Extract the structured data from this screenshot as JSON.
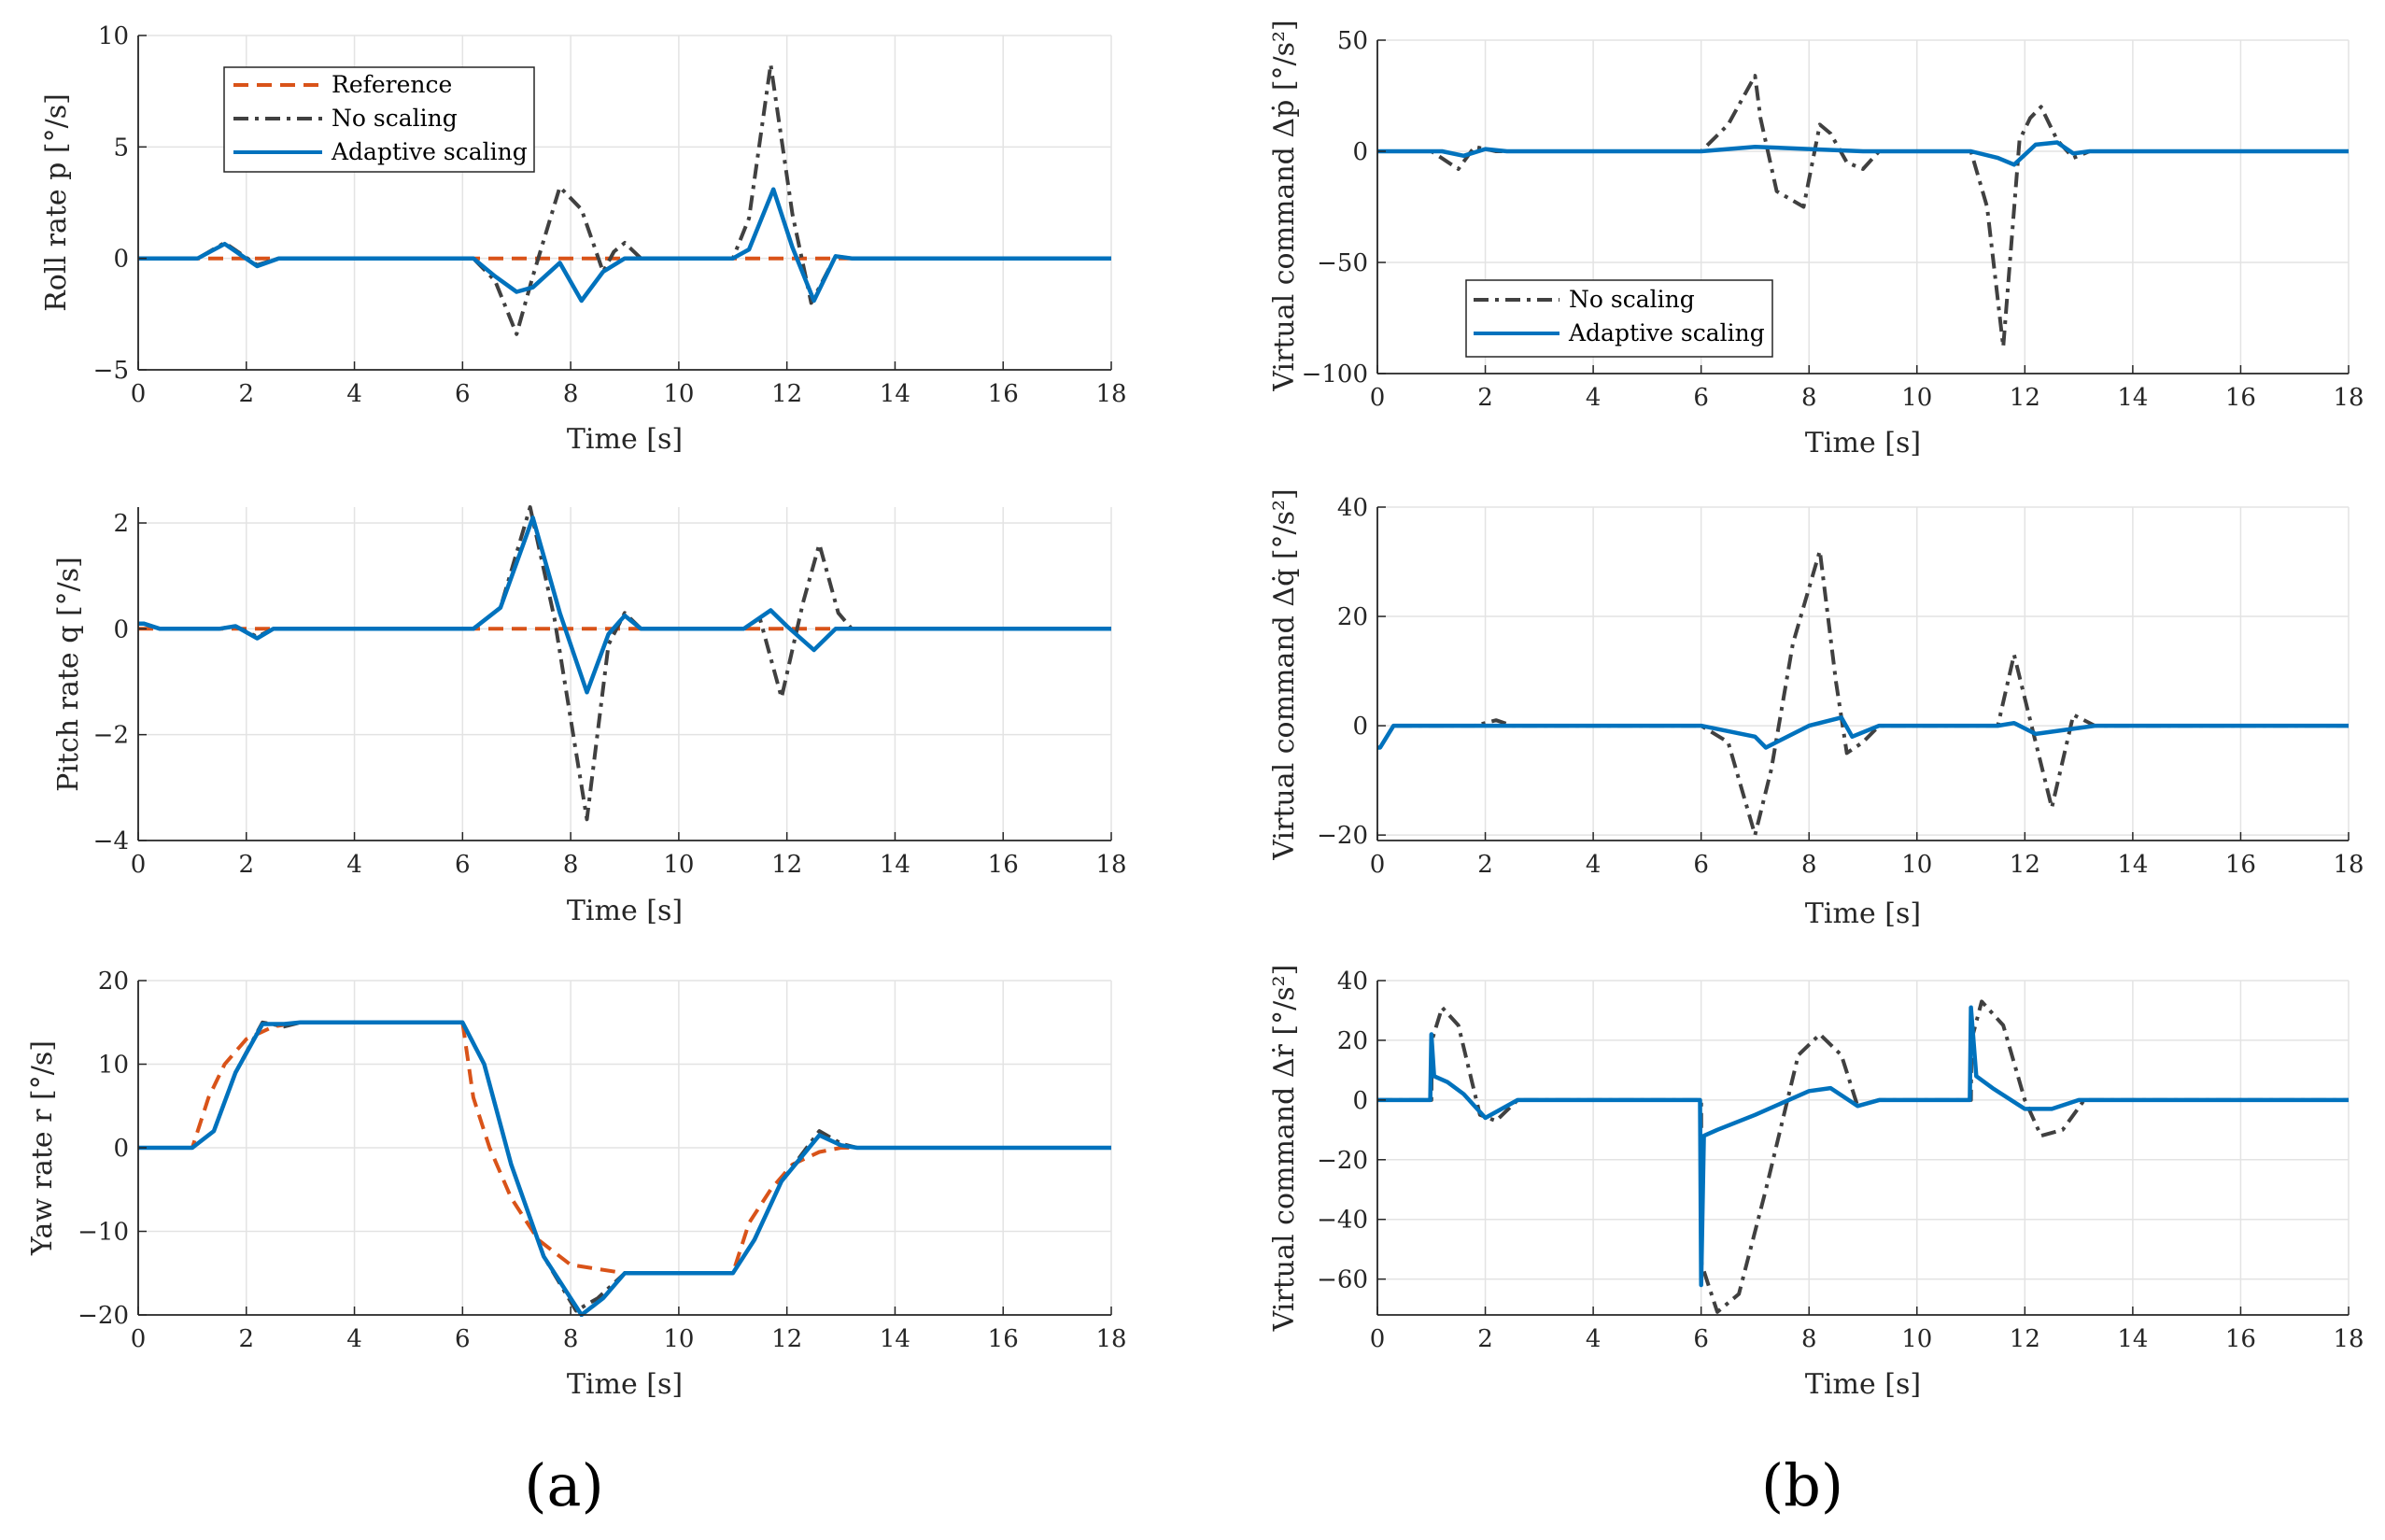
{
  "colors": {
    "reference": "#D95319",
    "no_scaling": "#404040",
    "adaptive": "#0072BD",
    "grid": "#e3e3e3",
    "axis": "#262626"
  },
  "panel_labels": [
    "(a)",
    "(b)"
  ],
  "chart_data": [
    {
      "id": "roll-rate",
      "type": "line",
      "xlabel": "Time [s]",
      "ylabel": "Roll rate p [°/s]",
      "xlim": [
        0,
        18
      ],
      "ylim": [
        -5,
        10
      ],
      "xticks": [
        0,
        2,
        4,
        6,
        8,
        10,
        12,
        14,
        16,
        18
      ],
      "yticks": [
        -5,
        0,
        5,
        10
      ],
      "legend": {
        "position": "top-left",
        "entries": [
          "Reference",
          "No scaling",
          "Adaptive scaling"
        ]
      },
      "series": [
        {
          "name": "Reference",
          "style": "dashed",
          "x": [
            0,
            18
          ],
          "y": [
            0,
            0
          ]
        },
        {
          "name": "No scaling",
          "style": "dashdot",
          "x": [
            0,
            1.1,
            1.6,
            2.2,
            2.6,
            6.2,
            6.6,
            7.0,
            7.3,
            7.8,
            8.2,
            8.6,
            8.8,
            9.0,
            9.3,
            11.0,
            11.3,
            11.7,
            12.1,
            12.45,
            12.9,
            13.2,
            18
          ],
          "y": [
            0,
            0,
            0.7,
            -0.3,
            0,
            0,
            -1.0,
            -3.4,
            -0.8,
            3.2,
            2.2,
            -0.6,
            0.3,
            0.7,
            0,
            0,
            1.8,
            8.7,
            2.0,
            -2.0,
            0.1,
            0,
            0
          ]
        },
        {
          "name": "Adaptive scaling",
          "style": "solid",
          "x": [
            0,
            1.1,
            1.6,
            2.2,
            2.6,
            6.2,
            6.6,
            7.0,
            7.3,
            7.8,
            8.2,
            8.6,
            9.0,
            9.3,
            11.0,
            11.3,
            11.75,
            12.1,
            12.5,
            12.9,
            13.2,
            18
          ],
          "y": [
            0,
            0,
            0.65,
            -0.35,
            0,
            0,
            -0.8,
            -1.5,
            -1.3,
            -0.2,
            -1.9,
            -0.6,
            0,
            0,
            0,
            0.4,
            3.1,
            0.5,
            -1.9,
            0.1,
            0,
            0
          ]
        }
      ]
    },
    {
      "id": "virtual-p",
      "type": "line",
      "xlabel": "Time [s]",
      "ylabel": "Virtual command Δṗ [°/s²]",
      "xlim": [
        0,
        18
      ],
      "ylim": [
        -100,
        50
      ],
      "xticks": [
        0,
        2,
        4,
        6,
        8,
        10,
        12,
        14,
        16,
        18
      ],
      "yticks": [
        -100,
        -50,
        0,
        50
      ],
      "legend": {
        "position": "lower-left",
        "entries": [
          "No scaling",
          "Adaptive scaling"
        ]
      },
      "series": [
        {
          "name": "No scaling",
          "style": "dashdot",
          "x": [
            0,
            1.0,
            1.5,
            1.8,
            2.2,
            6.0,
            6.5,
            7.0,
            7.1,
            7.4,
            7.9,
            8.2,
            8.4,
            8.7,
            9.0,
            9.3,
            11.0,
            11.3,
            11.6,
            11.9,
            12.1,
            12.3,
            12.6,
            12.9,
            13.2,
            18
          ],
          "y": [
            0,
            0,
            -8,
            2,
            0,
            0,
            12,
            34,
            15,
            -18,
            -25,
            12,
            8,
            -5,
            -8,
            0,
            0,
            -25,
            -88,
            5,
            15,
            20,
            5,
            -3,
            0,
            0
          ]
        },
        {
          "name": "Adaptive scaling",
          "style": "solid",
          "x": [
            0,
            1.2,
            1.6,
            2.0,
            2.4,
            6.0,
            7.0,
            8.0,
            9.0,
            11.0,
            11.5,
            11.8,
            12.2,
            12.6,
            12.9,
            13.2,
            18
          ],
          "y": [
            0,
            0,
            -2,
            1,
            0,
            0,
            2,
            1,
            0,
            0,
            -3,
            -6,
            3,
            4,
            -1,
            0,
            0
          ]
        }
      ]
    },
    {
      "id": "pitch-rate",
      "type": "line",
      "xlabel": "Time [s]",
      "ylabel": "Pitch rate q [°/s]",
      "xlim": [
        0,
        18
      ],
      "ylim": [
        -4,
        2.3
      ],
      "xticks": [
        0,
        2,
        4,
        6,
        8,
        10,
        12,
        14,
        16,
        18
      ],
      "yticks": [
        -4,
        -2,
        0,
        2
      ],
      "series": [
        {
          "name": "Reference",
          "style": "dashed",
          "x": [
            0,
            18
          ],
          "y": [
            0,
            0
          ]
        },
        {
          "name": "No scaling",
          "style": "dashdot",
          "x": [
            0,
            0.1,
            0.4,
            1.5,
            1.8,
            2.2,
            2.5,
            6.2,
            6.7,
            7.25,
            7.7,
            8.3,
            8.7,
            9.0,
            9.3,
            11.2,
            11.5,
            11.9,
            12.3,
            12.6,
            12.95,
            13.2,
            18
          ],
          "y": [
            0.1,
            0.1,
            0,
            0,
            0.05,
            -0.15,
            0,
            0,
            0.4,
            2.3,
            0.2,
            -3.6,
            -0.3,
            0.3,
            0,
            0,
            0.2,
            -1.3,
            0.5,
            1.6,
            0.3,
            0,
            0
          ]
        },
        {
          "name": "Adaptive scaling",
          "style": "solid",
          "x": [
            0,
            0.1,
            0.4,
            1.5,
            1.8,
            2.2,
            2.5,
            6.2,
            6.7,
            7.3,
            7.8,
            8.3,
            8.7,
            9.0,
            9.3,
            11.2,
            11.7,
            12.0,
            12.5,
            12.9,
            13.2,
            18
          ],
          "y": [
            0.1,
            0.1,
            0,
            0,
            0.05,
            -0.18,
            0,
            0,
            0.4,
            2.1,
            0.3,
            -1.2,
            -0.1,
            0.25,
            0,
            0,
            0.35,
            0.05,
            -0.4,
            0,
            0,
            0
          ]
        }
      ]
    },
    {
      "id": "virtual-q",
      "type": "line",
      "xlabel": "Time [s]",
      "ylabel": "Virtual command Δq̇ [°/s²]",
      "xlim": [
        0,
        18
      ],
      "ylim": [
        -21,
        40
      ],
      "xticks": [
        0,
        2,
        4,
        6,
        8,
        10,
        12,
        14,
        16,
        18
      ],
      "yticks": [
        -20,
        0,
        20,
        40
      ],
      "series": [
        {
          "name": "No scaling",
          "style": "dashdot",
          "x": [
            0,
            0.05,
            0.3,
            1.8,
            2.2,
            2.5,
            6.0,
            6.5,
            7.0,
            7.3,
            7.7,
            8.2,
            8.5,
            8.7,
            9.0,
            9.3,
            11.5,
            11.8,
            12.0,
            12.5,
            12.9,
            13.3,
            18
          ],
          "y": [
            -4,
            -4,
            0,
            0,
            1,
            0,
            0,
            -3,
            -20,
            -8,
            15,
            32,
            8,
            -5,
            -3,
            0,
            0,
            13,
            5,
            -15,
            2,
            0,
            0
          ]
        },
        {
          "name": "Adaptive scaling",
          "style": "solid",
          "x": [
            0,
            0.05,
            0.3,
            6.0,
            7.0,
            7.2,
            8.0,
            8.6,
            8.8,
            9.3,
            11.5,
            11.8,
            12.2,
            13.3,
            18
          ],
          "y": [
            -4,
            -4,
            0,
            0,
            -2,
            -4,
            0,
            1.5,
            -2,
            0,
            0,
            0.5,
            -1.5,
            0,
            0
          ]
        }
      ]
    },
    {
      "id": "yaw-rate",
      "type": "line",
      "xlabel": "Time [s]",
      "ylabel": "Yaw rate r [°/s]",
      "xlim": [
        0,
        18
      ],
      "ylim": [
        -20,
        20
      ],
      "xticks": [
        0,
        2,
        4,
        6,
        8,
        10,
        12,
        14,
        16,
        18
      ],
      "yticks": [
        -20,
        -10,
        0,
        10,
        20
      ],
      "series": [
        {
          "name": "Reference",
          "style": "dashed",
          "x": [
            0,
            1.0,
            1.3,
            1.6,
            2.0,
            2.5,
            3.0,
            6.0,
            6.2,
            6.5,
            6.9,
            7.4,
            8.0,
            9.0,
            10.0,
            11.0,
            11.3,
            11.7,
            12.1,
            12.6,
            13.0,
            18
          ],
          "y": [
            0,
            0,
            6,
            10,
            13,
            14.5,
            15,
            15,
            6,
            0,
            -6,
            -11,
            -14,
            -15,
            -15,
            -15,
            -9,
            -5,
            -2,
            -0.5,
            0,
            0
          ]
        },
        {
          "name": "No scaling",
          "style": "dashdot",
          "x": [
            0,
            1.0,
            1.4,
            1.8,
            2.3,
            2.7,
            3.0,
            6.0,
            6.4,
            6.9,
            7.5,
            8.1,
            8.5,
            9.0,
            11.0,
            11.4,
            11.9,
            12.6,
            13.0,
            13.3,
            18
          ],
          "y": [
            0,
            0,
            2,
            9,
            15,
            14.5,
            15,
            15,
            10,
            -2,
            -13,
            -19.5,
            -18,
            -15,
            -15,
            -11,
            -4,
            2,
            0.5,
            0,
            0
          ]
        },
        {
          "name": "Adaptive scaling",
          "style": "solid",
          "x": [
            0,
            1.0,
            1.4,
            1.8,
            2.3,
            2.7,
            3.0,
            6.0,
            6.4,
            6.9,
            7.5,
            8.2,
            8.6,
            9.0,
            11.0,
            11.4,
            11.9,
            12.6,
            13.0,
            13.3,
            18
          ],
          "y": [
            0,
            0,
            2,
            9,
            14.8,
            14.8,
            15,
            15,
            10,
            -2,
            -13,
            -20,
            -18,
            -15,
            -15,
            -11,
            -4,
            1.5,
            0.3,
            0,
            0
          ]
        }
      ]
    },
    {
      "id": "virtual-r",
      "type": "line",
      "xlabel": "Time [s]",
      "ylabel": "Virtual command Δṙ [°/s²]",
      "xlim": [
        0,
        18
      ],
      "ylim": [
        -72,
        40
      ],
      "xticks": [
        0,
        2,
        4,
        6,
        8,
        10,
        12,
        14,
        16,
        18
      ],
      "yticks": [
        -60,
        -40,
        -20,
        0,
        20,
        40
      ],
      "series": [
        {
          "name": "No scaling",
          "style": "dashdot",
          "x": [
            0,
            1.0,
            1.01,
            1.2,
            1.5,
            1.9,
            2.2,
            2.6,
            6.0,
            6.01,
            6.3,
            6.7,
            7.2,
            7.8,
            8.2,
            8.6,
            8.9,
            9.3,
            11.0,
            11.01,
            11.2,
            11.6,
            12.0,
            12.3,
            12.7,
            13.1,
            18
          ],
          "y": [
            0,
            0,
            20,
            31,
            25,
            -5,
            -7,
            0,
            0,
            -55,
            -71,
            -65,
            -30,
            15,
            22,
            15,
            -2,
            0,
            0,
            20,
            33,
            25,
            0,
            -12,
            -10,
            0,
            0
          ]
        },
        {
          "name": "Adaptive scaling",
          "style": "solid",
          "x": [
            0,
            0.98,
            1.0,
            1.05,
            1.3,
            1.6,
            2.0,
            2.6,
            5.98,
            6.0,
            6.05,
            6.3,
            7.0,
            8.0,
            8.4,
            8.9,
            9.3,
            10.98,
            11.0,
            11.1,
            11.4,
            12.0,
            12.5,
            13.0,
            18
          ],
          "y": [
            0,
            0,
            22,
            8,
            6,
            2,
            -6,
            0,
            0,
            -62,
            -12,
            -10,
            -5,
            3,
            4,
            -2,
            0,
            0,
            31,
            8,
            4,
            -3,
            -3,
            0,
            0
          ]
        }
      ]
    }
  ]
}
